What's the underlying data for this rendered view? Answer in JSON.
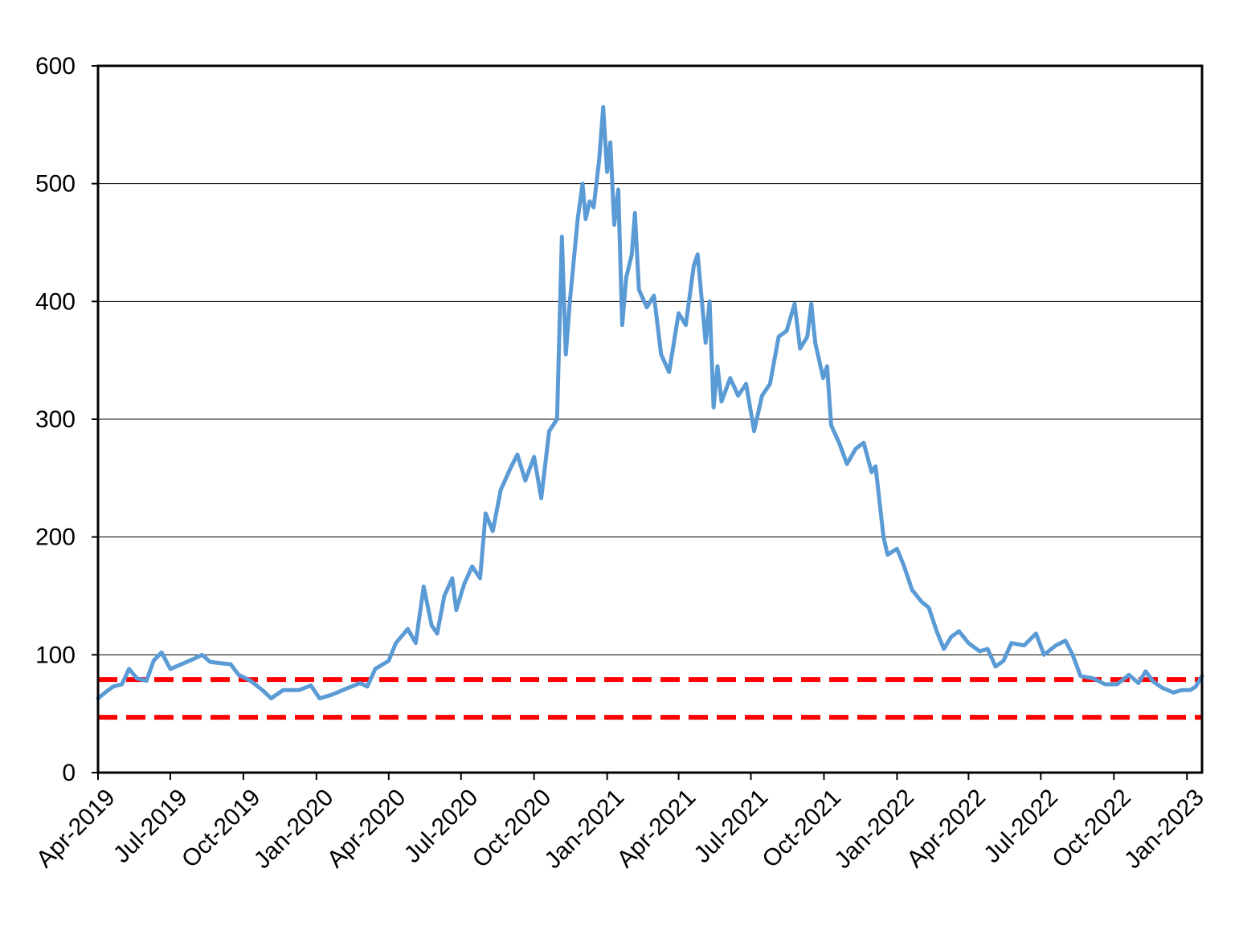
{
  "chart_data": {
    "type": "line",
    "title": "",
    "xlabel": "",
    "ylabel": "",
    "ylim": [
      0,
      600
    ],
    "yticks": [
      0,
      100,
      200,
      300,
      400,
      500,
      600
    ],
    "xlim": [
      "2019-04-01",
      "2023-01-20"
    ],
    "xtick_labels": [
      "Apr-2019",
      "Jul-2019",
      "Oct-2019",
      "Jan-2020",
      "Apr-2020",
      "Jul-2020",
      "Oct-2020",
      "Jan-2021",
      "Apr-2021",
      "Jul-2021",
      "Oct-2021",
      "Jan-2022",
      "Apr-2022",
      "Jul-2022",
      "Oct-2022",
      "Jan-2023"
    ],
    "xtick_dates": [
      "2019-04-01",
      "2019-07-01",
      "2019-10-01",
      "2020-01-01",
      "2020-04-01",
      "2020-07-01",
      "2020-10-01",
      "2021-01-01",
      "2021-04-01",
      "2021-07-01",
      "2021-10-01",
      "2022-01-01",
      "2022-04-01",
      "2022-07-01",
      "2022-10-01",
      "2023-01-01"
    ],
    "grid": true,
    "legend": "none",
    "series": [
      {
        "color": "#5b9bd5",
        "points": [
          [
            "2019-04-01",
            63
          ],
          [
            "2019-04-10",
            68
          ],
          [
            "2019-04-20",
            73
          ],
          [
            "2019-05-01",
            75
          ],
          [
            "2019-05-10",
            88
          ],
          [
            "2019-05-20",
            80
          ],
          [
            "2019-06-01",
            78
          ],
          [
            "2019-06-10",
            95
          ],
          [
            "2019-06-20",
            102
          ],
          [
            "2019-07-01",
            88
          ],
          [
            "2019-07-15",
            92
          ],
          [
            "2019-08-01",
            97
          ],
          [
            "2019-08-10",
            100
          ],
          [
            "2019-08-20",
            94
          ],
          [
            "2019-09-01",
            93
          ],
          [
            "2019-09-15",
            92
          ],
          [
            "2019-09-25",
            83
          ],
          [
            "2019-10-10",
            78
          ],
          [
            "2019-10-25",
            70
          ],
          [
            "2019-11-05",
            63
          ],
          [
            "2019-11-20",
            70
          ],
          [
            "2019-12-10",
            70
          ],
          [
            "2019-12-25",
            74
          ],
          [
            "2020-01-05",
            63
          ],
          [
            "2020-01-20",
            66
          ],
          [
            "2020-02-10",
            72
          ],
          [
            "2020-02-25",
            76
          ],
          [
            "2020-03-05",
            73
          ],
          [
            "2020-03-15",
            88
          ],
          [
            "2020-04-01",
            95
          ],
          [
            "2020-04-10",
            110
          ],
          [
            "2020-04-25",
            122
          ],
          [
            "2020-05-05",
            110
          ],
          [
            "2020-05-15",
            158
          ],
          [
            "2020-05-25",
            125
          ],
          [
            "2020-06-01",
            118
          ],
          [
            "2020-06-10",
            150
          ],
          [
            "2020-06-20",
            165
          ],
          [
            "2020-06-25",
            138
          ],
          [
            "2020-07-05",
            160
          ],
          [
            "2020-07-15",
            175
          ],
          [
            "2020-07-25",
            165
          ],
          [
            "2020-08-01",
            220
          ],
          [
            "2020-08-10",
            205
          ],
          [
            "2020-08-20",
            240
          ],
          [
            "2020-09-01",
            258
          ],
          [
            "2020-09-10",
            270
          ],
          [
            "2020-09-20",
            248
          ],
          [
            "2020-10-01",
            268
          ],
          [
            "2020-10-10",
            233
          ],
          [
            "2020-10-20",
            290
          ],
          [
            "2020-10-30",
            300
          ],
          [
            "2020-11-05",
            455
          ],
          [
            "2020-11-10",
            355
          ],
          [
            "2020-11-15",
            400
          ],
          [
            "2020-11-25",
            470
          ],
          [
            "2020-12-01",
            500
          ],
          [
            "2020-12-05",
            470
          ],
          [
            "2020-12-10",
            485
          ],
          [
            "2020-12-15",
            480
          ],
          [
            "2020-12-22",
            520
          ],
          [
            "2020-12-27",
            565
          ],
          [
            "2021-01-01",
            510
          ],
          [
            "2021-01-05",
            535
          ],
          [
            "2021-01-10",
            465
          ],
          [
            "2021-01-15",
            495
          ],
          [
            "2021-01-20",
            380
          ],
          [
            "2021-01-25",
            420
          ],
          [
            "2021-02-01",
            440
          ],
          [
            "2021-02-05",
            475
          ],
          [
            "2021-02-10",
            410
          ],
          [
            "2021-02-20",
            395
          ],
          [
            "2021-03-01",
            405
          ],
          [
            "2021-03-10",
            355
          ],
          [
            "2021-03-20",
            340
          ],
          [
            "2021-04-01",
            390
          ],
          [
            "2021-04-10",
            380
          ],
          [
            "2021-04-20",
            430
          ],
          [
            "2021-04-25",
            440
          ],
          [
            "2021-05-05",
            365
          ],
          [
            "2021-05-10",
            400
          ],
          [
            "2021-05-15",
            310
          ],
          [
            "2021-05-20",
            345
          ],
          [
            "2021-05-25",
            315
          ],
          [
            "2021-06-05",
            335
          ],
          [
            "2021-06-15",
            320
          ],
          [
            "2021-06-25",
            330
          ],
          [
            "2021-07-05",
            290
          ],
          [
            "2021-07-15",
            320
          ],
          [
            "2021-07-25",
            330
          ],
          [
            "2021-08-05",
            370
          ],
          [
            "2021-08-15",
            375
          ],
          [
            "2021-08-25",
            398
          ],
          [
            "2021-09-01",
            360
          ],
          [
            "2021-09-10",
            370
          ],
          [
            "2021-09-15",
            398
          ],
          [
            "2021-09-20",
            365
          ],
          [
            "2021-09-30",
            335
          ],
          [
            "2021-10-05",
            345
          ],
          [
            "2021-10-10",
            295
          ],
          [
            "2021-10-20",
            280
          ],
          [
            "2021-10-30",
            262
          ],
          [
            "2021-11-10",
            275
          ],
          [
            "2021-11-20",
            280
          ],
          [
            "2021-11-30",
            255
          ],
          [
            "2021-12-05",
            260
          ],
          [
            "2021-12-15",
            200
          ],
          [
            "2021-12-20",
            185
          ],
          [
            "2022-01-01",
            190
          ],
          [
            "2022-01-10",
            175
          ],
          [
            "2022-01-20",
            155
          ],
          [
            "2022-02-01",
            145
          ],
          [
            "2022-02-10",
            140
          ],
          [
            "2022-02-20",
            120
          ],
          [
            "2022-03-01",
            105
          ],
          [
            "2022-03-10",
            115
          ],
          [
            "2022-03-20",
            120
          ],
          [
            "2022-04-01",
            110
          ],
          [
            "2022-04-15",
            103
          ],
          [
            "2022-04-25",
            105
          ],
          [
            "2022-05-05",
            90
          ],
          [
            "2022-05-15",
            95
          ],
          [
            "2022-05-25",
            110
          ],
          [
            "2022-06-10",
            108
          ],
          [
            "2022-06-25",
            118
          ],
          [
            "2022-07-05",
            100
          ],
          [
            "2022-07-20",
            108
          ],
          [
            "2022-08-01",
            112
          ],
          [
            "2022-08-10",
            100
          ],
          [
            "2022-08-20",
            82
          ],
          [
            "2022-09-05",
            80
          ],
          [
            "2022-09-20",
            75
          ],
          [
            "2022-10-05",
            75
          ],
          [
            "2022-10-20",
            83
          ],
          [
            "2022-11-01",
            76
          ],
          [
            "2022-11-10",
            86
          ],
          [
            "2022-11-20",
            77
          ],
          [
            "2022-12-01",
            72
          ],
          [
            "2022-12-15",
            68
          ],
          [
            "2022-12-25",
            70
          ],
          [
            "2023-01-05",
            70
          ],
          [
            "2023-01-12",
            73
          ],
          [
            "2023-01-20",
            82
          ]
        ]
      }
    ],
    "reference_lines": [
      {
        "value": 79,
        "color": "#ff0000",
        "style": "dashed"
      },
      {
        "value": 47,
        "color": "#ff0000",
        "style": "dashed"
      }
    ]
  }
}
